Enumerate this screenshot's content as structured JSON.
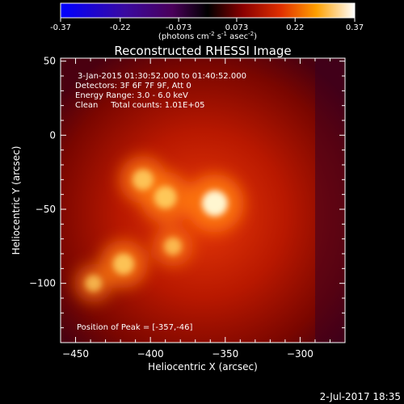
{
  "chart_data": {
    "type": "heatmap",
    "title": "Reconstructed RHESSI Image",
    "xlabel": "Heliocentric X (arcsec)",
    "ylabel": "Heliocentric Y (arcsec)",
    "xlim": [
      -460,
      -270
    ],
    "ylim": [
      -140,
      52
    ],
    "x_ticks": [
      -450,
      -400,
      -350,
      -300
    ],
    "y_ticks": [
      50,
      0,
      -50,
      -100
    ],
    "colorbar": {
      "min": -0.37,
      "max": 0.37,
      "ticks": [
        "-0.37",
        "-0.22",
        "-0.073",
        "0.073",
        "0.22",
        "0.37"
      ],
      "label_main": "(photons cm",
      "label_sup1": "-2",
      "label_mid1": " s",
      "label_sup2": "-1",
      "label_mid2": " asec",
      "label_sup3": "-2",
      "label_end": ")"
    },
    "annotations": [
      "3-Jan-2015 01:30:52.000 to 01:40:52.000",
      "Detectors: 3F 6F 7F 9F, Att 0",
      "Energy Range: 3.0 - 6.0 keV",
      "Clean     Total counts: 1.01E+05"
    ],
    "peak_label": "Position of Peak = [-357,-46]",
    "sources": [
      {
        "x": -357,
        "y": -46,
        "intensity": 1.0
      },
      {
        "x": -390,
        "y": -42,
        "intensity": 0.8
      },
      {
        "x": -405,
        "y": -30,
        "intensity": 0.7
      },
      {
        "x": -418,
        "y": -87,
        "intensity": 0.72
      },
      {
        "x": -385,
        "y": -75,
        "intensity": 0.5
      },
      {
        "x": -438,
        "y": -100,
        "intensity": 0.45
      }
    ]
  },
  "footer": {
    "date": "2-Jul-2017 18:35"
  }
}
